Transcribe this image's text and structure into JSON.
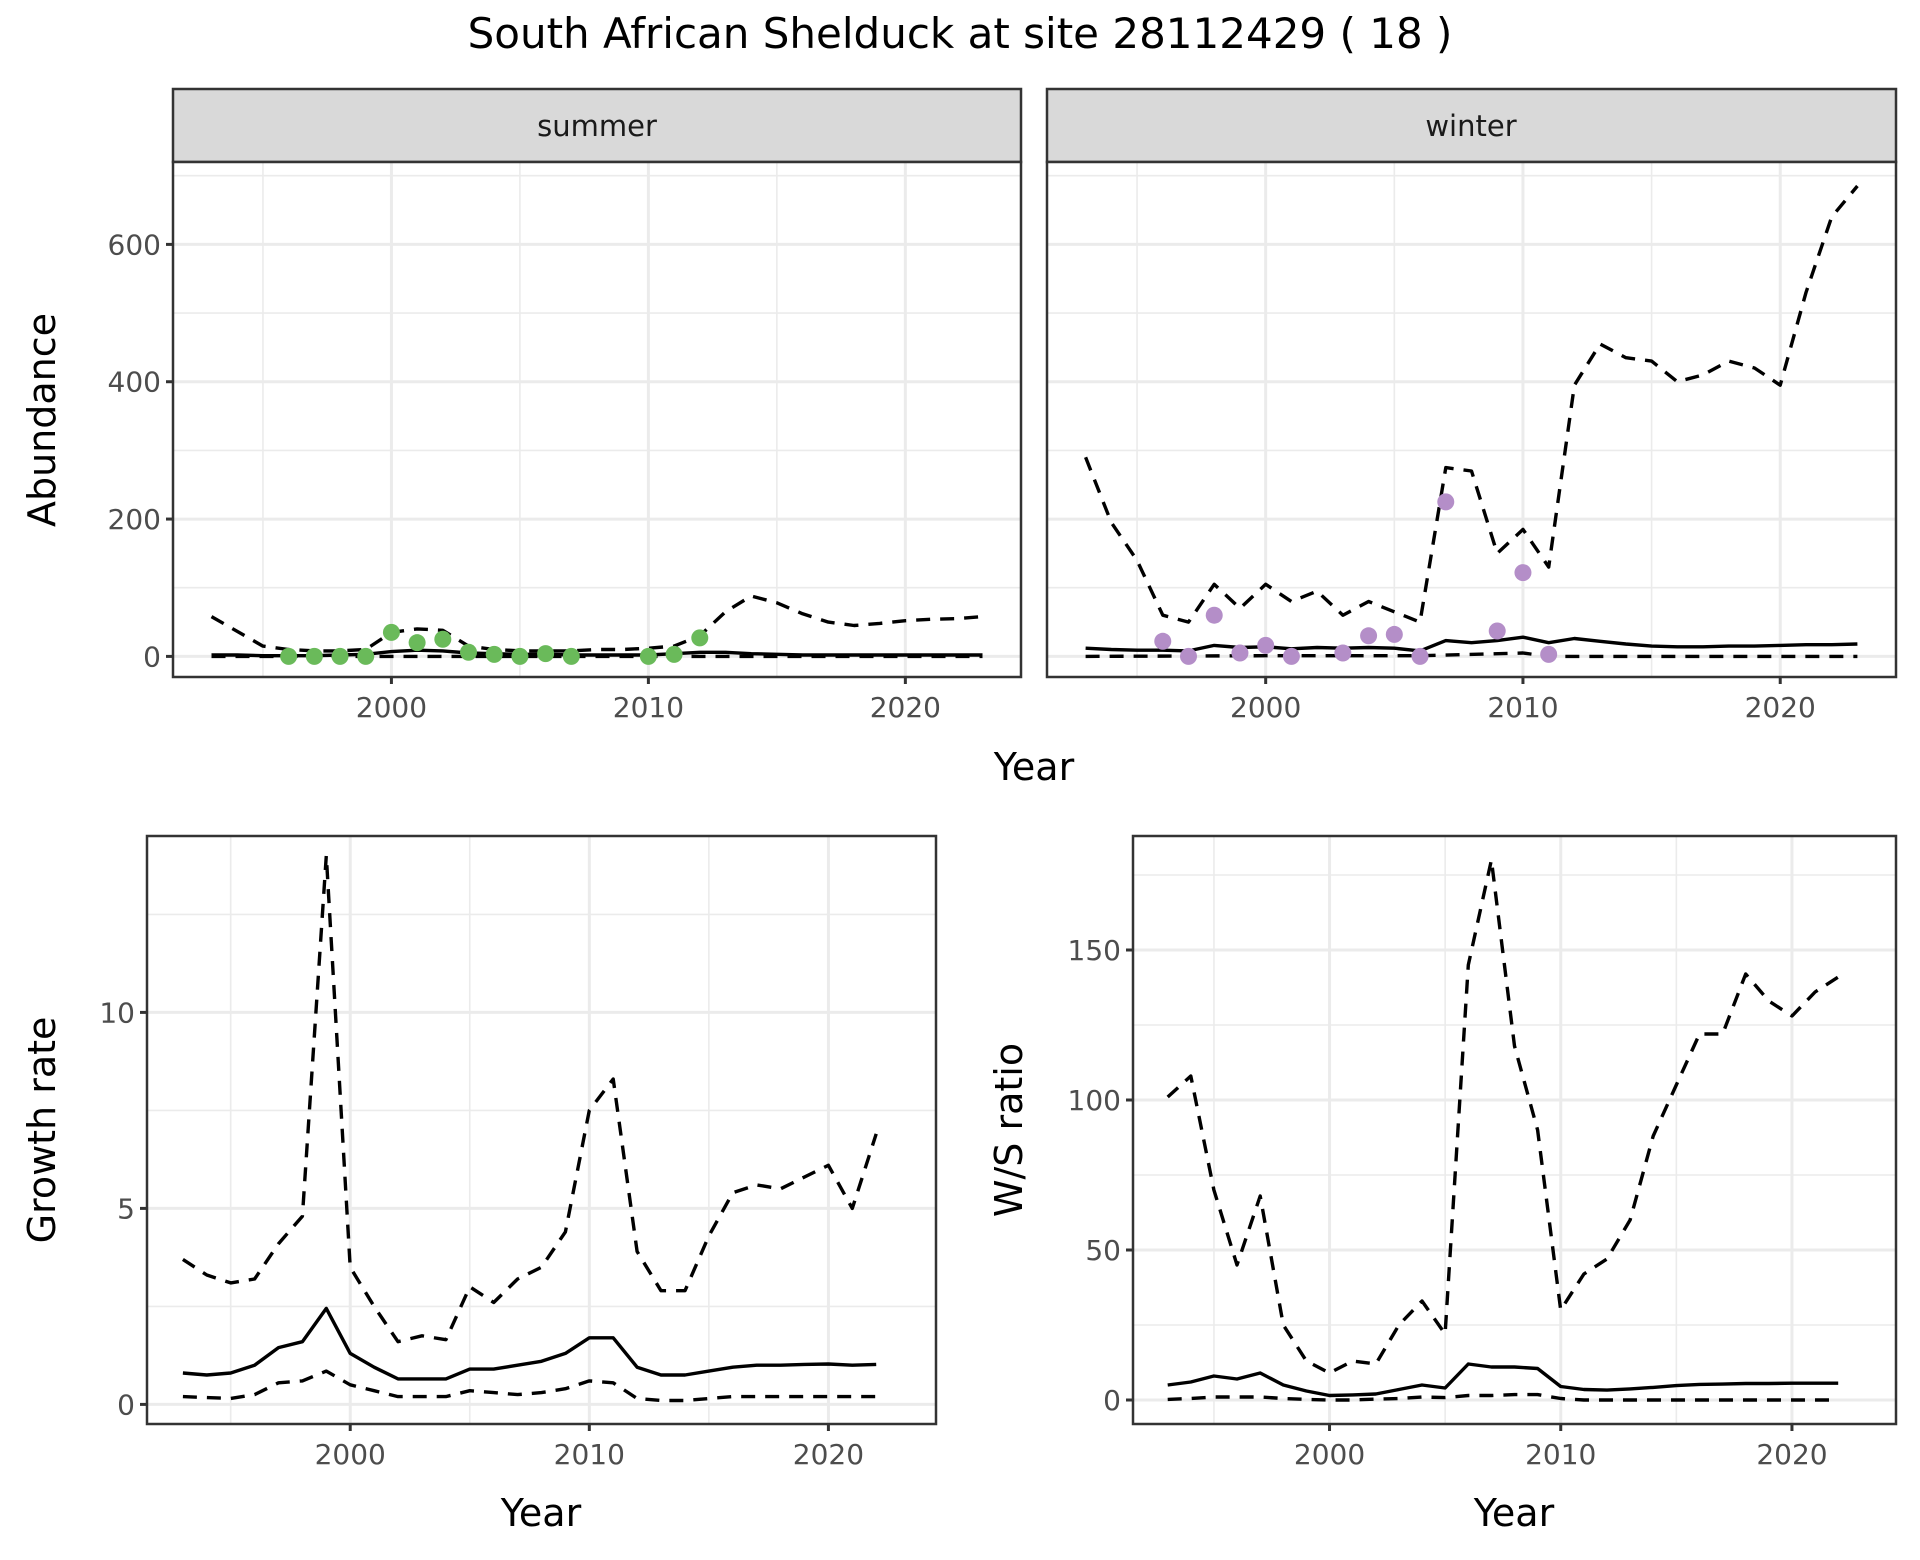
{
  "chart_data": {
    "title": "South African Shelduck at site 28112429 ( 18 )",
    "abundance": {
      "type": "line",
      "ylabel": "Abundance",
      "xlabel": "Year",
      "ylim": [
        -30,
        720
      ],
      "yticks": [
        0,
        200,
        400,
        600
      ],
      "xticks": [
        2000,
        2010,
        2020
      ],
      "xlim": [
        1991.5,
        2024.5
      ],
      "facets": [
        {
          "label": "summer",
          "point_color": "#6aba5a",
          "fit": {
            "x": [
              1993,
              1994,
              1995,
              1996,
              1997,
              1998,
              1999,
              2000,
              2001,
              2002,
              2003,
              2004,
              2005,
              2006,
              2007,
              2008,
              2009,
              2010,
              2011,
              2012,
              2013,
              2014,
              2015,
              2016,
              2017,
              2018,
              2019,
              2020,
              2021,
              2022,
              2023
            ],
            "y": [
              2,
              2,
              1,
              1,
              1,
              2,
              3,
              7,
              9,
              8,
              5,
              4,
              3,
              3,
              2,
              2,
              2,
              2,
              4,
              6,
              6,
              4,
              3,
              2,
              2,
              2,
              2,
              2,
              2,
              2,
              2
            ]
          },
          "upper": {
            "x": [
              1993,
              1995,
              1996,
              1997,
              1998,
              1999,
              2000,
              2001,
              2002,
              2003,
              2004,
              2005,
              2006,
              2007,
              2008,
              2009,
              2010,
              2011,
              2012,
              2013,
              2014,
              2015,
              2016,
              2017,
              2018,
              2019,
              2020,
              2021,
              2022,
              2023
            ],
            "y": [
              58,
              15,
              10,
              8,
              8,
              10,
              35,
              40,
              38,
              15,
              10,
              8,
              8,
              8,
              10,
              10,
              12,
              15,
              30,
              65,
              88,
              78,
              62,
              50,
              45,
              48,
              52,
              54,
              55,
              58
            ]
          },
          "lower": {
            "x": [
              1993,
              2023
            ],
            "y": [
              0,
              0
            ]
          },
          "points": {
            "x": [
              1996,
              1997,
              1998,
              1999,
              2000,
              2001,
              2002,
              2003,
              2004,
              2005,
              2006,
              2007,
              2010,
              2011,
              2012
            ],
            "y": [
              0,
              0,
              0,
              0,
              35,
              20,
              25,
              6,
              3,
              0,
              4,
              0,
              0,
              3,
              27
            ]
          }
        },
        {
          "label": "winter",
          "point_color": "#b48ec8",
          "fit": {
            "x": [
              1993,
              1994,
              1995,
              1996,
              1997,
              1998,
              1999,
              2000,
              2001,
              2002,
              2003,
              2004,
              2005,
              2006,
              2007,
              2008,
              2009,
              2010,
              2011,
              2012,
              2013,
              2014,
              2015,
              2016,
              2017,
              2018,
              2019,
              2020,
              2021,
              2022,
              2023
            ],
            "y": [
              12,
              10,
              9,
              9,
              8,
              16,
              13,
              14,
              11,
              13,
              12,
              13,
              12,
              8,
              23,
              20,
              23,
              28,
              20,
              26,
              22,
              18,
              15,
              14,
              14,
              15,
              15,
              16,
              17,
              17,
              18
            ]
          },
          "upper": {
            "x": [
              1993,
              1994,
              1995,
              1996,
              1997,
              1998,
              1999,
              2000,
              2001,
              2002,
              2003,
              2004,
              2005,
              2006,
              2007,
              2008,
              2009,
              2010,
              2011,
              2012,
              2013,
              2014,
              2015,
              2016,
              2017,
              2018,
              2019,
              2020,
              2021,
              2022,
              2023
            ],
            "y": [
              290,
              195,
              140,
              60,
              50,
              105,
              70,
              105,
              80,
              95,
              60,
              80,
              65,
              50,
              275,
              270,
              150,
              185,
              130,
              395,
              455,
              435,
              430,
              400,
              410,
              430,
              420,
              395,
              530,
              640,
              685
            ]
          },
          "lower": {
            "x": [
              1993,
              2000,
              2006,
              2010,
              2011,
              2023
            ],
            "y": [
              0,
              1,
              1,
              5,
              0,
              0
            ]
          },
          "points": {
            "x": [
              1996,
              1997,
              1998,
              1999,
              2000,
              2001,
              2003,
              2004,
              2005,
              2006,
              2007,
              2009,
              2010,
              2011
            ],
            "y": [
              22,
              0,
              60,
              5,
              16,
              0,
              5,
              30,
              32,
              0,
              225,
              37,
              122,
              3
            ]
          }
        }
      ]
    },
    "growth": {
      "type": "line",
      "ylabel": "Growth rate",
      "xlabel": "Year",
      "ylim": [
        -0.5,
        14.5
      ],
      "yticks": [
        0,
        5,
        10
      ],
      "xticks": [
        2000,
        2010,
        2020
      ],
      "xlim": [
        1991.5,
        2024.5
      ],
      "fit": {
        "x": [
          1993,
          1994,
          1995,
          1996,
          1997,
          1998,
          1999,
          2000,
          2001,
          2002,
          2003,
          2004,
          2005,
          2006,
          2007,
          2008,
          2009,
          2010,
          2011,
          2012,
          2013,
          2014,
          2015,
          2016,
          2017,
          2018,
          2019,
          2020,
          2021,
          2022
        ],
        "y": [
          0.8,
          0.75,
          0.8,
          1.0,
          1.45,
          1.6,
          2.45,
          1.3,
          0.95,
          0.65,
          0.65,
          0.65,
          0.9,
          0.9,
          1.0,
          1.1,
          1.3,
          1.7,
          1.7,
          0.95,
          0.75,
          0.75,
          0.85,
          0.95,
          1.0,
          1.0,
          1.02,
          1.03,
          1.0,
          1.02
        ]
      },
      "upper": {
        "x": [
          1993,
          1994,
          1995,
          1996,
          1997,
          1998,
          1999,
          2000,
          2001,
          2002,
          2003,
          2004,
          2005,
          2006,
          2007,
          2008,
          2009,
          2010,
          2011,
          2012,
          2013,
          2014,
          2015,
          2016,
          2017,
          2018,
          2019,
          2020,
          2021,
          2022
        ],
        "y": [
          3.7,
          3.3,
          3.1,
          3.2,
          4.1,
          4.8,
          14.0,
          3.5,
          2.5,
          1.6,
          1.75,
          1.65,
          3.0,
          2.6,
          3.2,
          3.5,
          4.4,
          7.5,
          8.3,
          3.9,
          2.9,
          2.9,
          4.3,
          5.4,
          5.6,
          5.5,
          5.8,
          6.1,
          5.0,
          6.9
        ]
      },
      "lower": {
        "x": [
          1993,
          1995,
          1996,
          1997,
          1998,
          1999,
          2000,
          2001,
          2002,
          2003,
          2004,
          2005,
          2006,
          2007,
          2008,
          2009,
          2010,
          2011,
          2012,
          2013,
          2014,
          2015,
          2016,
          2017,
          2018,
          2019,
          2020,
          2021,
          2022
        ],
        "y": [
          0.2,
          0.15,
          0.25,
          0.55,
          0.6,
          0.85,
          0.5,
          0.35,
          0.2,
          0.2,
          0.2,
          0.35,
          0.3,
          0.25,
          0.3,
          0.4,
          0.6,
          0.55,
          0.15,
          0.1,
          0.1,
          0.15,
          0.2,
          0.2,
          0.2,
          0.2,
          0.2,
          0.2,
          0.2
        ]
      }
    },
    "ws_ratio": {
      "type": "line",
      "ylabel": "W/S ratio",
      "xlabel": "Year",
      "ylim": [
        -8,
        188
      ],
      "yticks": [
        0,
        50,
        100,
        150
      ],
      "xticks": [
        2000,
        2010,
        2020
      ],
      "xlim": [
        1991.5,
        2024.5
      ],
      "fit": {
        "x": [
          1993,
          1994,
          1995,
          1996,
          1997,
          1998,
          1999,
          2000,
          2001,
          2002,
          2003,
          2004,
          2005,
          2006,
          2007,
          2008,
          2009,
          2010,
          2011,
          2012,
          2013,
          2014,
          2015,
          2016,
          2017,
          2018,
          2019,
          2020,
          2021,
          2022
        ],
        "y": [
          5,
          6,
          8,
          7,
          9,
          5,
          3,
          1.5,
          1.7,
          2,
          3.5,
          5,
          4,
          12,
          11,
          11,
          10.5,
          4.5,
          3.5,
          3.3,
          3.7,
          4.2,
          4.8,
          5.2,
          5.3,
          5.5,
          5.5,
          5.6,
          5.6,
          5.6
        ]
      },
      "upper": {
        "x": [
          1993,
          1994,
          1995,
          1996,
          1997,
          1998,
          1999,
          2000,
          2001,
          2002,
          2003,
          2004,
          2005,
          2006,
          2007,
          2008,
          2009,
          2010,
          2011,
          2012,
          2013,
          2014,
          2015,
          2016,
          2017,
          2018,
          2019,
          2020,
          2021,
          2022
        ],
        "y": [
          101,
          108,
          70,
          45,
          68,
          25,
          13,
          9,
          13,
          12,
          25,
          33,
          22,
          145,
          180,
          118,
          90,
          30,
          42,
          47,
          60,
          88,
          105,
          122,
          122,
          142,
          133,
          128,
          136,
          141
        ]
      },
      "lower": {
        "x": [
          1993,
          1994,
          1995,
          1996,
          1997,
          1998,
          1999,
          2000,
          2001,
          2002,
          2003,
          2004,
          2005,
          2006,
          2007,
          2008,
          2009,
          2010,
          2011,
          2012,
          2022
        ],
        "y": [
          0.2,
          0.5,
          1,
          1,
          1,
          0.5,
          0.2,
          0,
          0,
          0.3,
          0.5,
          1,
          0.8,
          1.5,
          1.5,
          1.8,
          1.8,
          0.5,
          0,
          0,
          0
        ]
      }
    }
  }
}
